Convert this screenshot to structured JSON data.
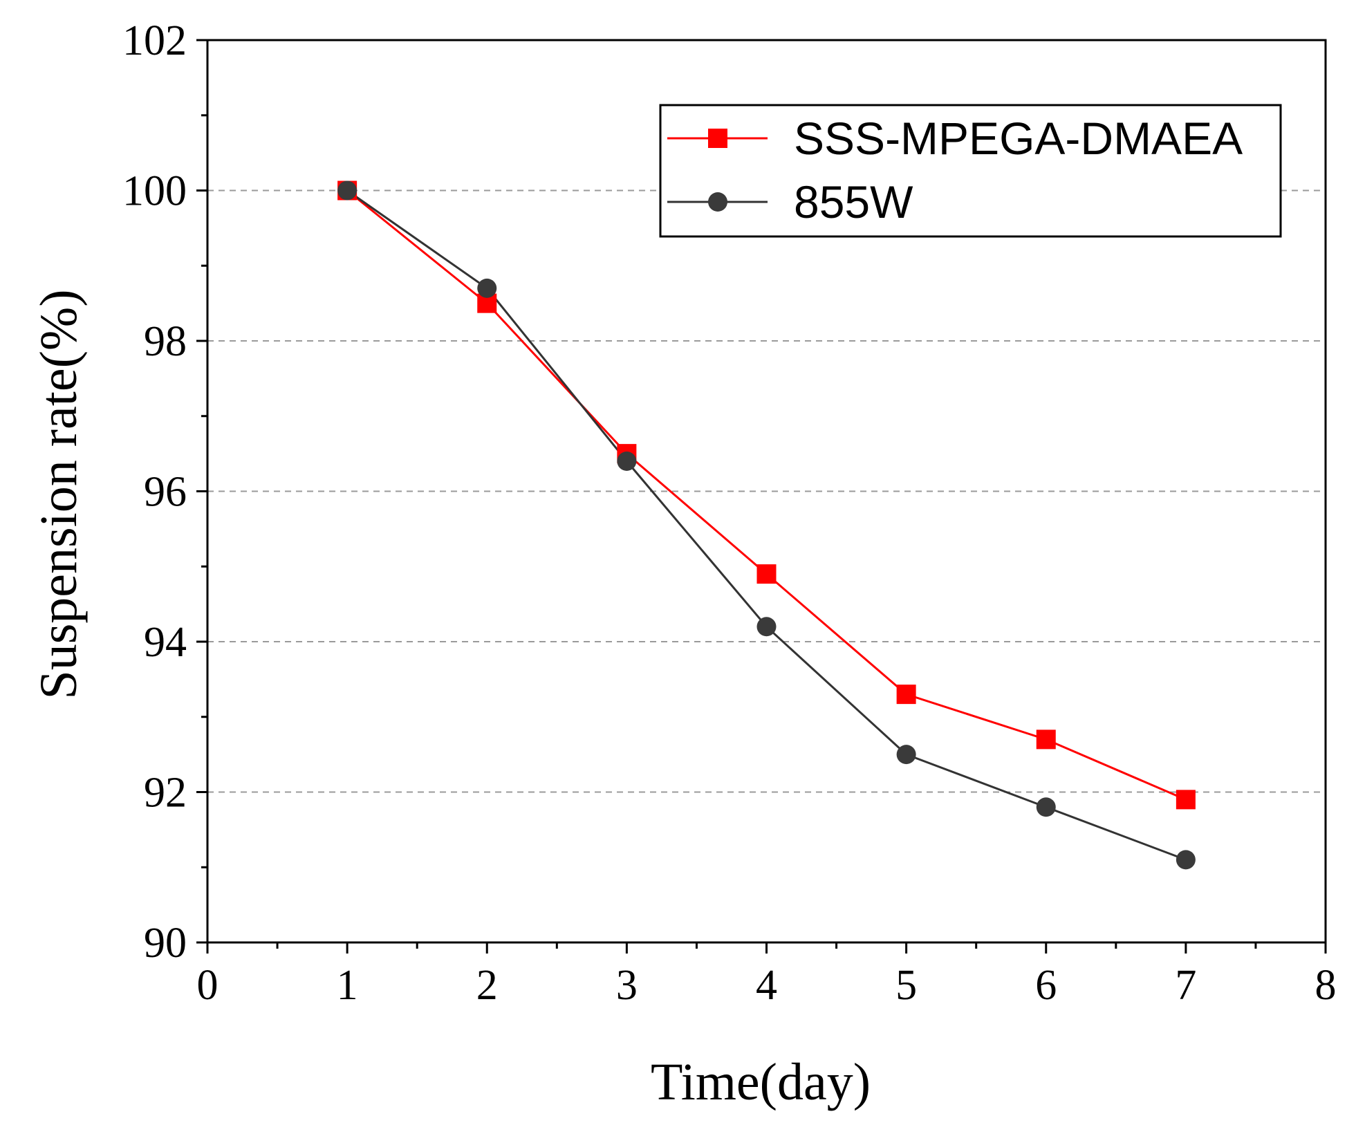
{
  "chart_data": {
    "type": "line",
    "title": "",
    "xlabel": "Time(day)",
    "ylabel": "Suspension rate(%)",
    "xlim": [
      0,
      8
    ],
    "ylim": [
      90,
      102
    ],
    "xticks": [
      0,
      1,
      2,
      3,
      4,
      5,
      6,
      7,
      8
    ],
    "yticks": [
      90,
      92,
      94,
      96,
      98,
      100,
      102
    ],
    "x_minor_ticks": [
      0.5,
      1.5,
      2.5,
      3.5,
      4.5,
      5.5,
      6.5,
      7.5
    ],
    "y_minor_ticks": [
      91,
      93,
      95,
      97,
      99,
      101
    ],
    "grid": {
      "horizontal": true,
      "vertical": false,
      "style": "dashed",
      "at": [
        92,
        94,
        96,
        98,
        100
      ]
    },
    "legend_position": "top-right",
    "x": [
      1,
      2,
      3,
      4,
      5,
      6,
      7
    ],
    "series": [
      {
        "name": "SSS-MPEGA-DMAEA",
        "values": [
          100,
          98.5,
          96.5,
          94.9,
          93.3,
          92.7,
          91.9
        ],
        "color": "#ff0000",
        "marker": "square"
      },
      {
        "name": "855W",
        "values": [
          100,
          98.7,
          96.4,
          94.2,
          92.5,
          91.8,
          91.1
        ],
        "color": "#333333",
        "marker": "circle"
      }
    ]
  }
}
